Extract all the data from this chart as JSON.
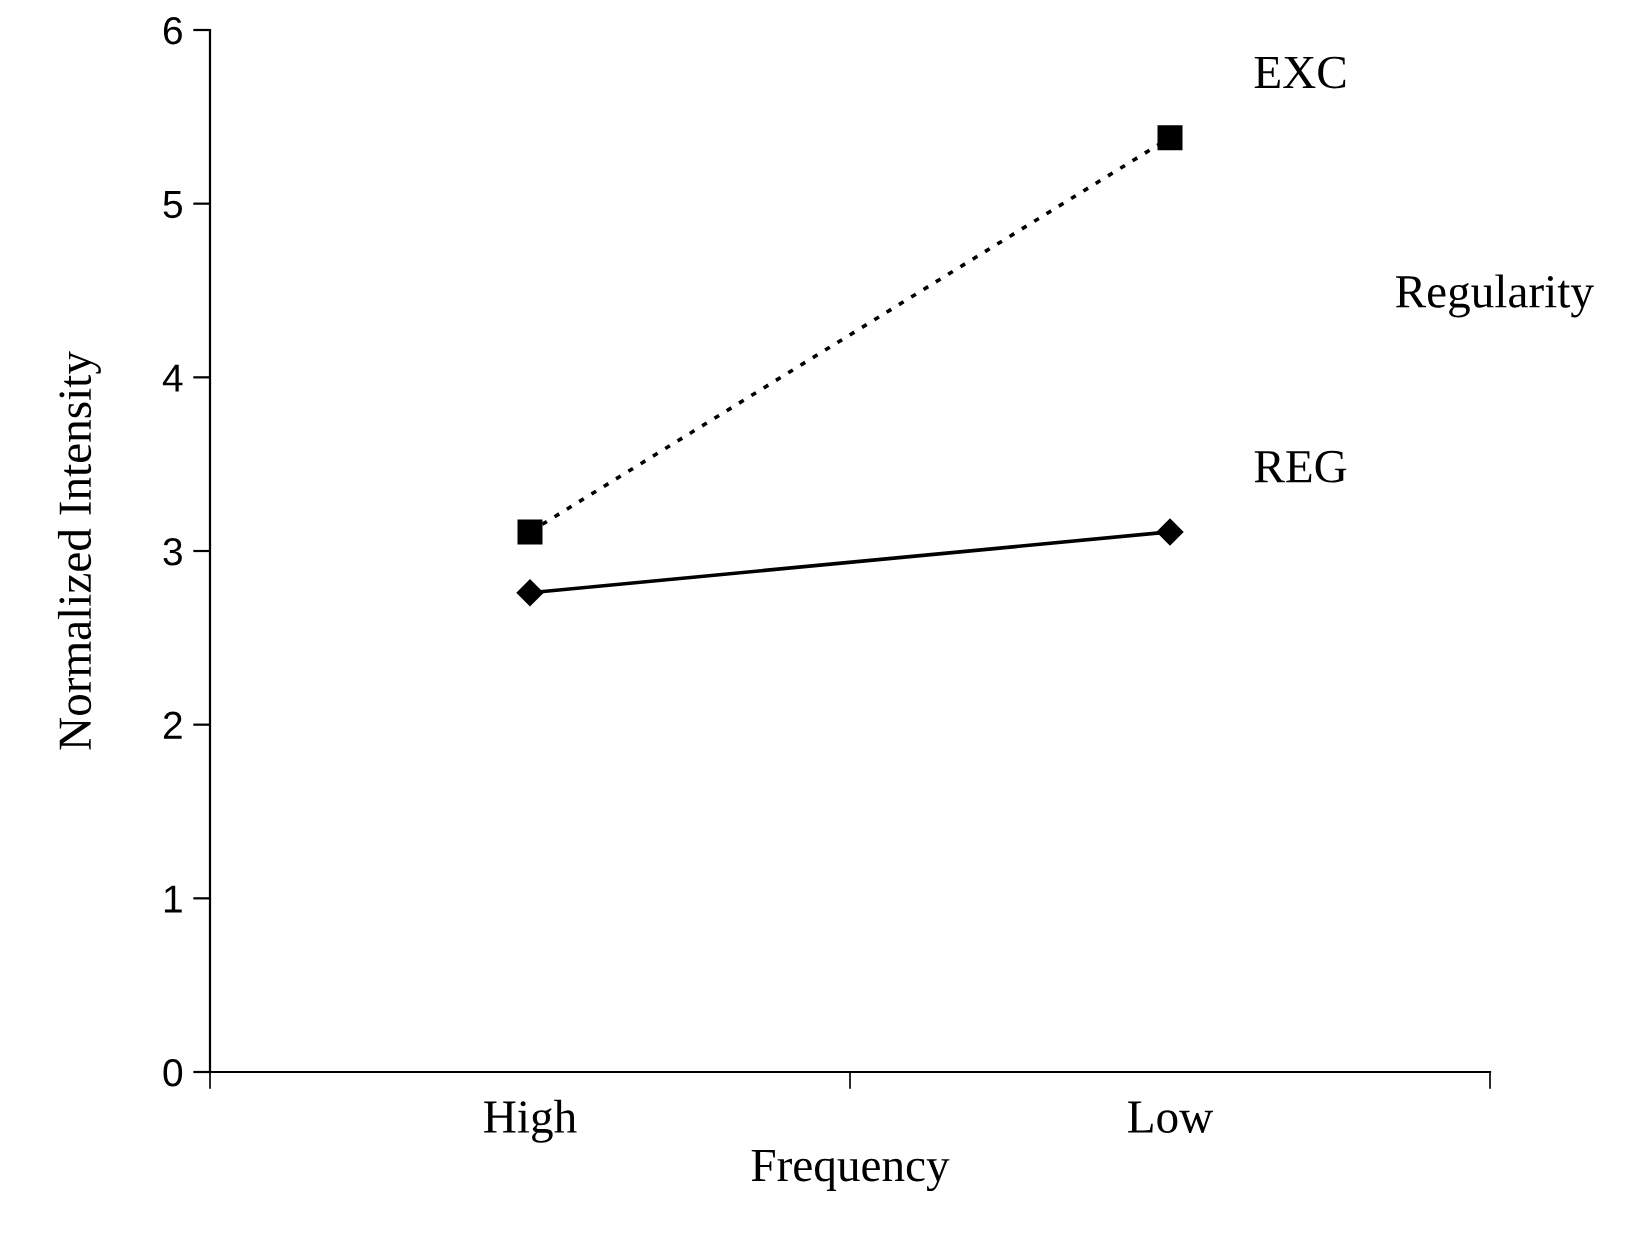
{
  "chart_data": {
    "type": "line",
    "xlabel": "Frequency",
    "ylabel": "Normalized Intensity",
    "legend_title": "Regularity",
    "categories": [
      "High",
      "Low"
    ],
    "series": [
      {
        "name": "EXC",
        "color": "#000000",
        "values": [
          3.11,
          5.38
        ],
        "marker": "square",
        "line_style": "dotted"
      },
      {
        "name": "REG",
        "color": "#000000",
        "values": [
          2.76,
          3.11
        ],
        "marker": "diamond",
        "line_style": "solid"
      }
    ],
    "ylim": [
      0,
      6
    ],
    "yticks": [
      0,
      1,
      2,
      3,
      4,
      5,
      6
    ],
    "grid": false,
    "legend": false
  }
}
